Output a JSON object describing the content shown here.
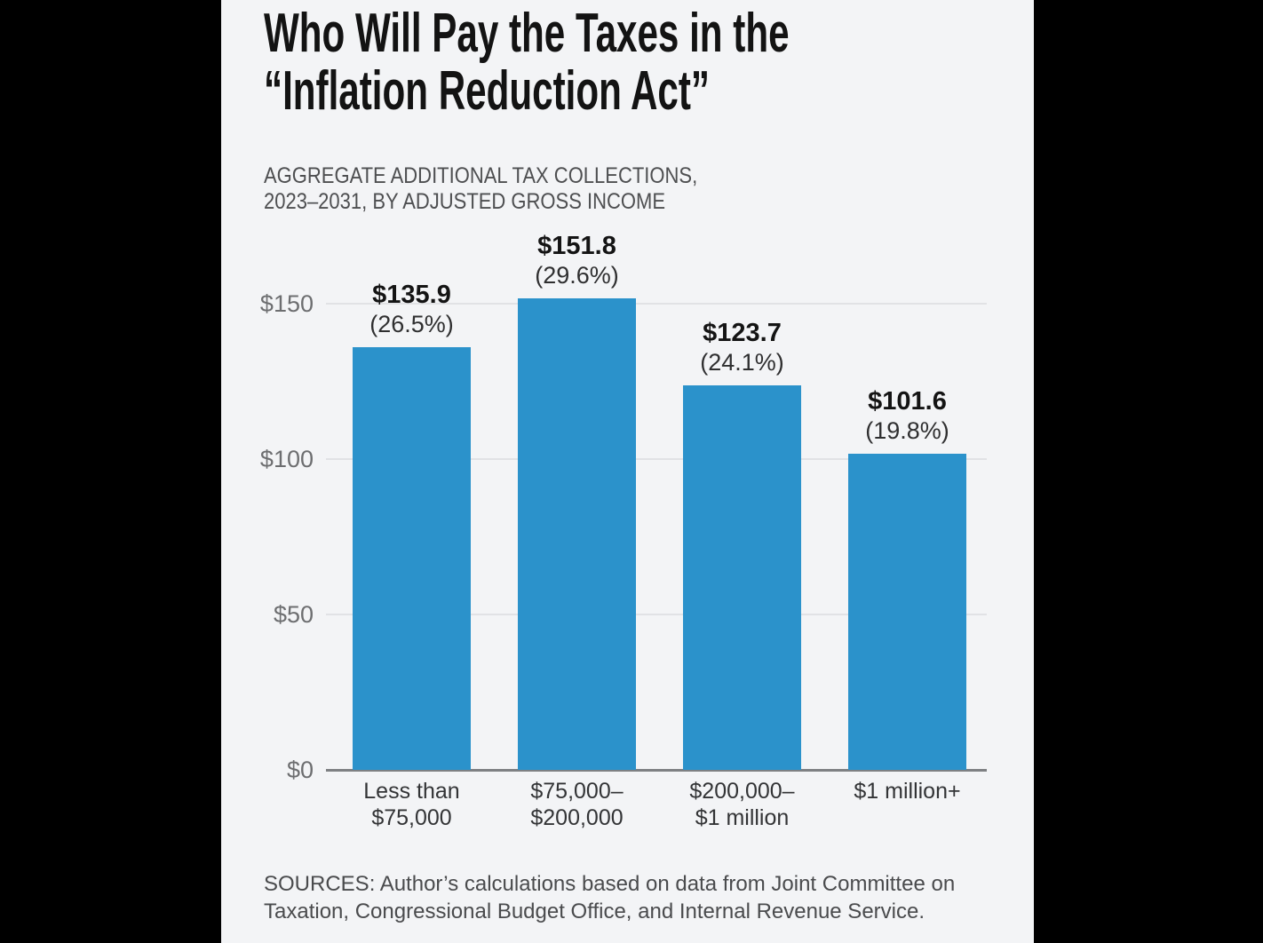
{
  "page": {
    "background": "#000000",
    "card_background": "#f3f4f6"
  },
  "header": {
    "title_lines": [
      "Who Will Pay the Taxes in the",
      "“Inflation Reduction Act”"
    ],
    "subtitle_lines": [
      "AGGREGATE ADDITIONAL TAX COLLECTIONS,",
      "2023–2031, BY ADJUSTED GROSS INCOME"
    ]
  },
  "footer": {
    "source_lines": [
      "SOURCES: Author’s calculations based on data from Joint Committee on",
      "Taxation, Congressional Budget Office, and Internal Revenue Service."
    ]
  },
  "chart_data": {
    "type": "bar",
    "title": "Who Will Pay the Taxes in the “Inflation Reduction Act”",
    "subtitle": "AGGREGATE ADDITIONAL TAX COLLECTIONS, 2023–2031, BY ADJUSTED GROSS INCOME",
    "categories": [
      "Less than $75,000",
      "$75,000–$200,000",
      "$200,000–$1 million",
      "$1 million+"
    ],
    "category_lines": [
      [
        "Less than",
        "$75,000"
      ],
      [
        "$75,000–",
        "$200,000"
      ],
      [
        "$200,000–",
        "$1 million"
      ],
      [
        "$1 million+"
      ]
    ],
    "values": [
      135.9,
      151.8,
      123.7,
      101.6
    ],
    "value_labels": [
      "$135.9",
      "$151.8",
      "$123.7",
      "$101.6"
    ],
    "percentages": [
      26.5,
      29.6,
      24.1,
      19.8
    ],
    "percent_labels": [
      "(26.5%)",
      "(29.6%)",
      "(24.1%)",
      "(19.8%)"
    ],
    "y_ticks": [
      {
        "value": 0,
        "label": "$0"
      },
      {
        "value": 50,
        "label": "$50"
      },
      {
        "value": 100,
        "label": "$100"
      },
      {
        "value": 150,
        "label": "$150"
      }
    ],
    "ylim": [
      0,
      155
    ],
    "grid": true,
    "legend": false,
    "xlabel": "",
    "ylabel": "",
    "bar_color": "#2b92cb"
  }
}
